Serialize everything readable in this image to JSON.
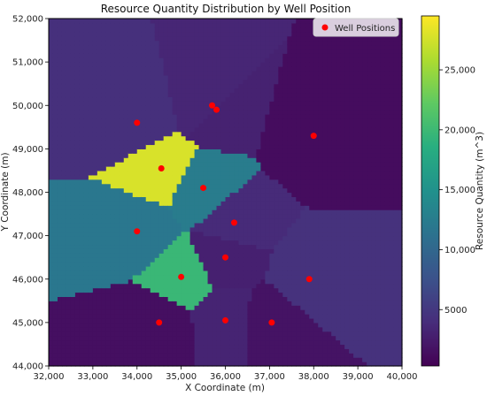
{
  "chart_data": {
    "type": "heatmap",
    "title": "Resource Quantity Distribution by Well Position",
    "xlabel": "X Coordinate (m)",
    "ylabel": "Y Coordinate (m)",
    "xlim": [
      32000,
      40000
    ],
    "ylim": [
      44000,
      52000
    ],
    "x_ticks": [
      "32,000",
      "33,000",
      "34,000",
      "35,000",
      "36,000",
      "37,000",
      "38,000",
      "39,000",
      "40,000"
    ],
    "y_ticks": [
      "44,000",
      "45,000",
      "46,000",
      "47,000",
      "48,000",
      "49,000",
      "50,000",
      "51,000",
      "52,000"
    ],
    "colorbar": {
      "label": "Resource Quantity (m^3)",
      "range": [
        300,
        29500
      ],
      "ticks": [
        "5000",
        "10,000",
        "15,000",
        "20,000",
        "25,000"
      ],
      "colormap": "viridis"
    },
    "legend": {
      "label": "Well Positions",
      "placement": "top-right",
      "marker_color": "#ff0000"
    },
    "wells": [
      {
        "x": 34000,
        "y": 49600,
        "value": 4200
      },
      {
        "x": 35700,
        "y": 50000,
        "value": 3400
      },
      {
        "x": 35800,
        "y": 49900,
        "value": 3000
      },
      {
        "x": 38000,
        "y": 49300,
        "value": 1200
      },
      {
        "x": 34550,
        "y": 48550,
        "value": 27800
      },
      {
        "x": 35500,
        "y": 48100,
        "value": 12400
      },
      {
        "x": 34000,
        "y": 47100,
        "value": 11800
      },
      {
        "x": 36200,
        "y": 47300,
        "value": 3800
      },
      {
        "x": 36000,
        "y": 46500,
        "value": 2900
      },
      {
        "x": 35000,
        "y": 46050,
        "value": 19800
      },
      {
        "x": 37900,
        "y": 46000,
        "value": 4400
      },
      {
        "x": 34500,
        "y": 45000,
        "value": 1500
      },
      {
        "x": 36000,
        "y": 45050,
        "value": 3200
      },
      {
        "x": 37050,
        "y": 45000,
        "value": 1800
      }
    ]
  }
}
